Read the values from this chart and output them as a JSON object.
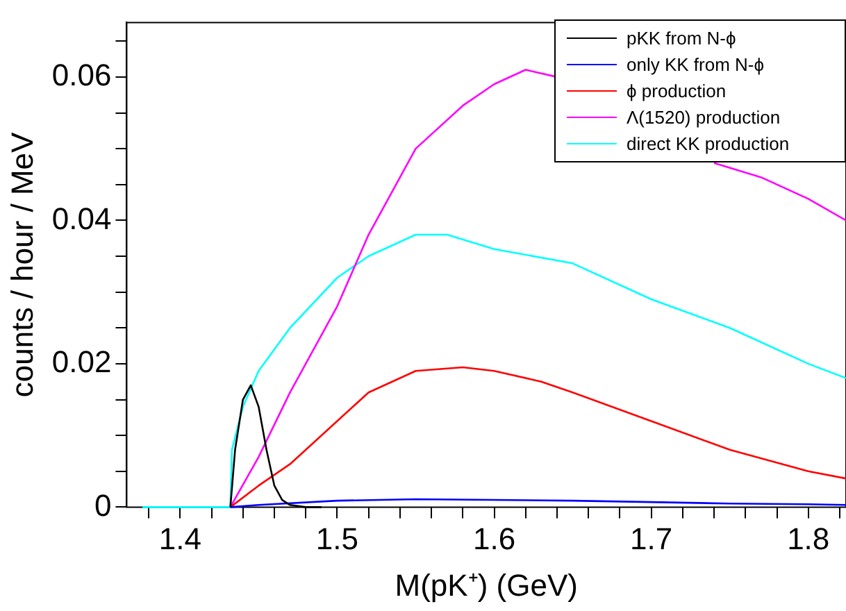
{
  "chart_data": {
    "type": "line",
    "xlabel": "M(pK⁺) (GeV)",
    "ylabel": "counts / hour / MeV",
    "xlim": [
      1.366,
      1.824
    ],
    "ylim": [
      0,
      0.0676
    ],
    "xticks": [
      {
        "value": 1.38,
        "label": null
      },
      1.4,
      {
        "value": 1.42,
        "label": null
      },
      {
        "value": 1.44,
        "label": null
      },
      {
        "value": 1.46,
        "label": null
      },
      {
        "value": 1.48,
        "label": null
      },
      1.5,
      {
        "value": 1.52,
        "label": null
      },
      {
        "value": 1.54,
        "label": null
      },
      {
        "value": 1.56,
        "label": null
      },
      {
        "value": 1.58,
        "label": null
      },
      1.6,
      {
        "value": 1.62,
        "label": null
      },
      {
        "value": 1.64,
        "label": null
      },
      {
        "value": 1.66,
        "label": null
      },
      {
        "value": 1.68,
        "label": null
      },
      1.7,
      {
        "value": 1.72,
        "label": null
      },
      {
        "value": 1.74,
        "label": null
      },
      {
        "value": 1.76,
        "label": null
      },
      {
        "value": 1.78,
        "label": null
      },
      1.8,
      {
        "value": 1.82,
        "label": null
      }
    ],
    "yticks": [
      0,
      {
        "value": 0.005,
        "label": null
      },
      {
        "value": 0.01,
        "label": null
      },
      {
        "value": 0.015,
        "label": null
      },
      0.02,
      {
        "value": 0.025,
        "label": null
      },
      {
        "value": 0.03,
        "label": null
      },
      {
        "value": 0.035,
        "label": null
      },
      0.04,
      {
        "value": 0.045,
        "label": null
      },
      {
        "value": 0.05,
        "label": null
      },
      {
        "value": 0.055,
        "label": null
      },
      0.06,
      {
        "value": 0.065,
        "label": null
      }
    ],
    "grid": false,
    "legend": "top right",
    "marker": "none",
    "line_style": "solid",
    "series": [
      {
        "name": "pKK from N-ϕ",
        "color": "#000000",
        "x": [
          1.432,
          1.435,
          1.44,
          1.445,
          1.45,
          1.455,
          1.46,
          1.465,
          1.47,
          1.48,
          1.49
        ],
        "values": [
          0,
          0.008,
          0.015,
          0.017,
          0.014,
          0.008,
          0.003,
          0.001,
          0.0003,
          0,
          0
        ]
      },
      {
        "name": "only KK from N-ϕ",
        "color": "#0000ff",
        "x": [
          1.432,
          1.45,
          1.5,
          1.55,
          1.6,
          1.65,
          1.7,
          1.75,
          1.8,
          1.824
        ],
        "values": [
          0,
          0.0003,
          0.0009,
          0.0011,
          0.001,
          0.0009,
          0.0007,
          0.0005,
          0.0004,
          0.0003
        ]
      },
      {
        "name": "ϕ production",
        "color": "#ff0000",
        "x": [
          1.432,
          1.45,
          1.47,
          1.5,
          1.52,
          1.55,
          1.58,
          1.6,
          1.63,
          1.65,
          1.7,
          1.75,
          1.8,
          1.824
        ],
        "values": [
          0,
          0.003,
          0.006,
          0.012,
          0.016,
          0.019,
          0.0195,
          0.019,
          0.0175,
          0.016,
          0.012,
          0.008,
          0.005,
          0.004
        ]
      },
      {
        "name": "Λ(1520) production",
        "color": "#ff00ff",
        "x": [
          1.432,
          1.45,
          1.47,
          1.5,
          1.52,
          1.55,
          1.58,
          1.6,
          1.62,
          1.64,
          1.66,
          1.68,
          1.7,
          1.72,
          1.74,
          1.77,
          1.8,
          1.824
        ],
        "values": [
          0,
          0.007,
          0.016,
          0.028,
          0.038,
          0.05,
          0.056,
          0.059,
          0.061,
          0.06,
          null,
          null,
          null,
          null,
          0.048,
          0.046,
          0.043,
          0.04
        ]
      },
      {
        "name": "direct KK production",
        "color": "#00ffff",
        "x": [
          1.376,
          1.432,
          1.433,
          1.44,
          1.45,
          1.47,
          1.5,
          1.52,
          1.55,
          1.57,
          1.6,
          1.65,
          1.7,
          1.75,
          1.8,
          1.824
        ],
        "values": [
          0,
          0,
          0.008,
          0.014,
          0.019,
          0.025,
          0.032,
          0.035,
          0.038,
          0.038,
          0.036,
          0.034,
          0.029,
          0.025,
          0.02,
          0.018
        ]
      }
    ]
  }
}
